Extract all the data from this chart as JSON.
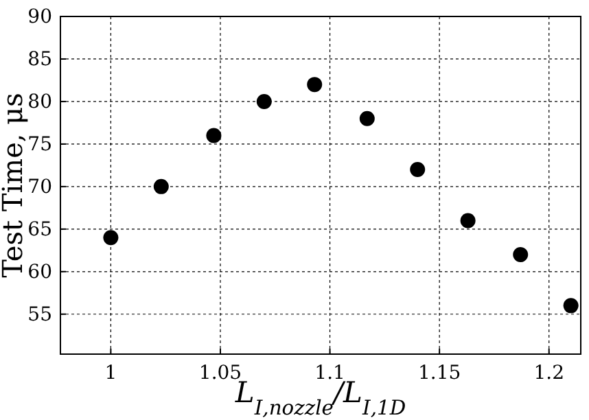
{
  "chart_data": {
    "type": "scatter",
    "xlabel": "L$_{I,nozzle}$/L$_{I,1D}$",
    "ylabel": "Test Time, μs",
    "x": [
      1,
      1.023,
      1.047,
      1.07,
      1.093,
      1.117,
      1.14,
      1.163,
      1.187,
      1.21
    ],
    "series": [
      {
        "color": "#000000",
        "values": [
          64,
          70,
          76,
          80,
          82,
          78,
          72,
          66,
          62,
          56
        ]
      }
    ],
    "xlim": [
      0.977,
      1.2145
    ],
    "xticks": [
      1,
      1.05,
      1.1,
      1.15,
      1.2
    ],
    "ylim": [
      50.3,
      90
    ],
    "yticks": [
      55,
      60,
      65,
      70,
      75,
      80,
      85,
      90
    ],
    "grid": true,
    "marker": "circle"
  }
}
